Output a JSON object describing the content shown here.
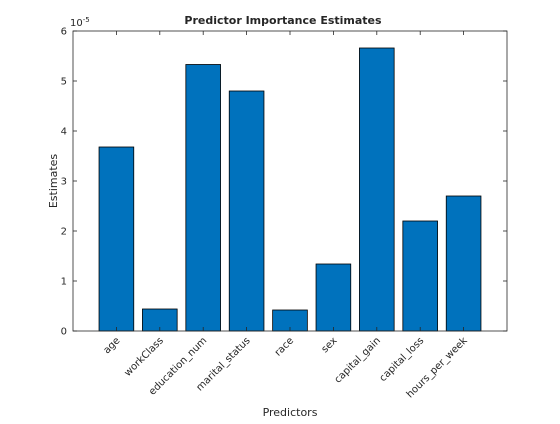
{
  "chart_data": {
    "type": "bar",
    "title": "Predictor Importance Estimates",
    "xlabel": "Predictors",
    "ylabel": "Estimates",
    "y_exponent_base": "10",
    "y_exponent_power": "-5",
    "categories": [
      "age",
      "workClass",
      "education_num",
      "marital_status",
      "race",
      "sex",
      "capital_gain",
      "capital_loss",
      "hours_per_week"
    ],
    "values": [
      3.68e-05,
      4.4e-06,
      5.33e-05,
      4.8e-05,
      4.2e-06,
      1.34e-05,
      5.66e-05,
      2.2e-05,
      2.7e-05
    ],
    "ylim": [
      0,
      6e-05
    ],
    "yticks": [
      0,
      1,
      2,
      3,
      4,
      5,
      6
    ],
    "ytick_labels": [
      "0",
      "1",
      "2",
      "3",
      "4",
      "5",
      "6"
    ],
    "grid": false,
    "bar_color": "#0072BD",
    "bar_edge_color": "#000000"
  }
}
